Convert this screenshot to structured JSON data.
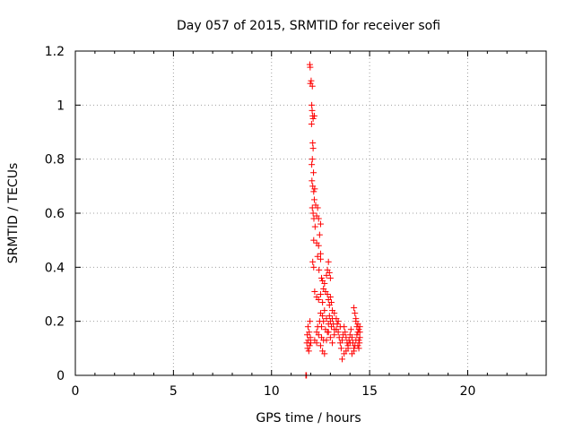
{
  "chart_data": {
    "type": "scatter",
    "title": "Day 057 of 2015, SRMTID for receiver sofi",
    "xlabel": "GPS time / hours",
    "ylabel": "SRMTID / TECUs",
    "xlim": [
      0,
      24
    ],
    "ylim": [
      0,
      1.2
    ],
    "x_ticks": [
      0,
      5,
      10,
      15,
      20
    ],
    "x_tick_labels": [
      "0",
      "5",
      "10",
      "15",
      "20"
    ],
    "y_ticks": [
      0,
      0.2,
      0.4,
      0.6,
      0.8,
      1.0,
      1.2
    ],
    "y_tick_labels": [
      "0",
      "0.2",
      "0.4",
      "0.6",
      "0.8",
      "1",
      "1.2"
    ],
    "grid": true,
    "marker": "+",
    "marker_color": "#ff0000",
    "series": [
      {
        "name": "SRMTID",
        "points": [
          [
            11.75,
            0.0
          ],
          [
            11.78,
            0.0
          ],
          [
            11.8,
            0.12
          ],
          [
            11.82,
            0.15
          ],
          [
            11.84,
            0.1
          ],
          [
            11.86,
            0.18
          ],
          [
            11.88,
            0.13
          ],
          [
            11.9,
            0.09
          ],
          [
            11.92,
            0.16
          ],
          [
            11.94,
            0.11
          ],
          [
            11.96,
            0.2
          ],
          [
            11.98,
            0.14
          ],
          [
            12.0,
            0.12
          ],
          [
            11.95,
            1.15
          ],
          [
            11.97,
            1.14
          ],
          [
            11.98,
            1.08
          ],
          [
            12.02,
            1.09
          ],
          [
            12.08,
            1.07
          ],
          [
            12.05,
            1.0
          ],
          [
            12.07,
            0.98
          ],
          [
            12.1,
            0.96
          ],
          [
            12.04,
            0.93
          ],
          [
            12.12,
            0.95
          ],
          [
            12.18,
            0.96
          ],
          [
            12.1,
            0.86
          ],
          [
            12.12,
            0.84
          ],
          [
            12.08,
            0.8
          ],
          [
            12.14,
            0.75
          ],
          [
            12.05,
            0.78
          ],
          [
            12.06,
            0.72
          ],
          [
            12.1,
            0.7
          ],
          [
            12.15,
            0.68
          ],
          [
            12.2,
            0.69
          ],
          [
            12.18,
            0.65
          ],
          [
            12.08,
            0.62
          ],
          [
            12.12,
            0.6
          ],
          [
            12.16,
            0.58
          ],
          [
            12.22,
            0.55
          ],
          [
            12.25,
            0.63
          ],
          [
            12.3,
            0.59
          ],
          [
            12.35,
            0.62
          ],
          [
            12.4,
            0.58
          ],
          [
            12.45,
            0.52
          ],
          [
            12.5,
            0.56
          ],
          [
            12.15,
            0.5
          ],
          [
            12.3,
            0.49
          ],
          [
            12.4,
            0.48
          ],
          [
            12.5,
            0.45
          ],
          [
            12.1,
            0.42
          ],
          [
            12.15,
            0.4
          ],
          [
            12.35,
            0.44
          ],
          [
            12.42,
            0.39
          ],
          [
            12.5,
            0.43
          ],
          [
            12.55,
            0.36
          ],
          [
            12.6,
            0.35
          ],
          [
            12.65,
            0.32
          ],
          [
            12.7,
            0.34
          ],
          [
            12.75,
            0.31
          ],
          [
            12.2,
            0.31
          ],
          [
            12.3,
            0.29
          ],
          [
            12.4,
            0.28
          ],
          [
            12.5,
            0.3
          ],
          [
            12.6,
            0.27
          ],
          [
            12.8,
            0.37
          ],
          [
            12.85,
            0.39
          ],
          [
            12.9,
            0.42
          ],
          [
            12.95,
            0.38
          ],
          [
            13.0,
            0.36
          ],
          [
            12.85,
            0.3
          ],
          [
            12.9,
            0.28
          ],
          [
            12.95,
            0.26
          ],
          [
            13.0,
            0.29
          ],
          [
            13.05,
            0.27
          ],
          [
            12.5,
            0.23
          ],
          [
            12.6,
            0.22
          ],
          [
            12.7,
            0.24
          ],
          [
            12.8,
            0.21
          ],
          [
            12.9,
            0.19
          ],
          [
            12.55,
            0.18
          ],
          [
            12.65,
            0.2
          ],
          [
            12.75,
            0.17
          ],
          [
            12.85,
            0.16
          ],
          [
            12.95,
            0.22
          ],
          [
            13.0,
            0.2
          ],
          [
            13.05,
            0.18
          ],
          [
            13.1,
            0.21
          ],
          [
            13.15,
            0.19
          ],
          [
            13.2,
            0.17
          ],
          [
            12.2,
            0.13
          ],
          [
            12.3,
            0.12
          ],
          [
            12.4,
            0.15
          ],
          [
            12.5,
            0.11
          ],
          [
            12.6,
            0.09
          ],
          [
            12.7,
            0.08
          ],
          [
            12.8,
            0.13
          ],
          [
            12.9,
            0.16
          ],
          [
            13.0,
            0.14
          ],
          [
            13.1,
            0.12
          ],
          [
            13.2,
            0.15
          ],
          [
            13.3,
            0.17
          ],
          [
            13.35,
            0.19
          ],
          [
            13.4,
            0.16
          ],
          [
            13.45,
            0.14
          ],
          [
            13.5,
            0.12
          ],
          [
            13.55,
            0.1
          ],
          [
            13.6,
            0.13
          ],
          [
            13.65,
            0.15
          ],
          [
            13.7,
            0.18
          ],
          [
            13.75,
            0.16
          ],
          [
            13.8,
            0.14
          ],
          [
            13.85,
            0.12
          ],
          [
            13.9,
            0.1
          ],
          [
            13.95,
            0.13
          ],
          [
            13.6,
            0.06
          ],
          [
            13.7,
            0.08
          ],
          [
            13.8,
            0.09
          ],
          [
            13.9,
            0.11
          ],
          [
            14.0,
            0.12
          ],
          [
            14.0,
            0.15
          ],
          [
            14.05,
            0.17
          ],
          [
            14.1,
            0.14
          ],
          [
            14.15,
            0.12
          ],
          [
            14.2,
            0.1
          ],
          [
            14.1,
            0.08
          ],
          [
            14.2,
            0.09
          ],
          [
            14.25,
            0.11
          ],
          [
            14.3,
            0.13
          ],
          [
            14.35,
            0.15
          ],
          [
            14.2,
            0.25
          ],
          [
            14.25,
            0.23
          ],
          [
            14.3,
            0.2
          ],
          [
            14.35,
            0.18
          ],
          [
            14.4,
            0.16
          ],
          [
            14.3,
            0.21
          ],
          [
            14.4,
            0.19
          ],
          [
            14.45,
            0.17
          ],
          [
            14.5,
            0.14
          ],
          [
            14.48,
            0.12
          ],
          [
            14.4,
            0.11
          ],
          [
            14.45,
            0.1
          ],
          [
            14.5,
            0.16
          ],
          [
            14.5,
            0.18
          ],
          [
            14.45,
            0.13
          ],
          [
            13.3,
            0.21
          ],
          [
            13.4,
            0.2
          ],
          [
            13.5,
            0.18
          ],
          [
            13.2,
            0.23
          ],
          [
            13.1,
            0.24
          ],
          [
            12.3,
            0.16
          ],
          [
            12.35,
            0.18
          ],
          [
            12.45,
            0.2
          ],
          [
            12.55,
            0.14
          ],
          [
            12.65,
            0.13
          ]
        ]
      }
    ]
  }
}
